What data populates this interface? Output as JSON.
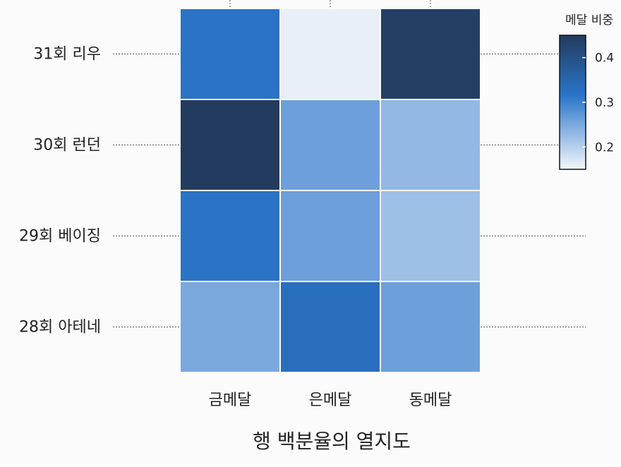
{
  "chart_data": {
    "type": "heatmap",
    "title": "행 백분율의 열지도",
    "columns": [
      "금메달",
      "은메달",
      "동메달"
    ],
    "rows": [
      "31회 리우",
      "30회 런던",
      "29회 베이징",
      "28회 아테네"
    ],
    "values": [
      [
        0.32,
        0.16,
        0.44
      ],
      [
        0.45,
        0.26,
        0.23
      ],
      [
        0.32,
        0.26,
        0.22
      ],
      [
        0.25,
        0.33,
        0.26
      ]
    ],
    "legend": {
      "title": "메달 비중",
      "ticks": [
        0.4,
        0.3,
        0.2
      ],
      "range": [
        0.15,
        0.45
      ],
      "placement": "top-right"
    },
    "colors": {
      "low": "#f4f7fb",
      "mid": "#2a75c9",
      "high": "#233b5e"
    },
    "grid": false
  }
}
